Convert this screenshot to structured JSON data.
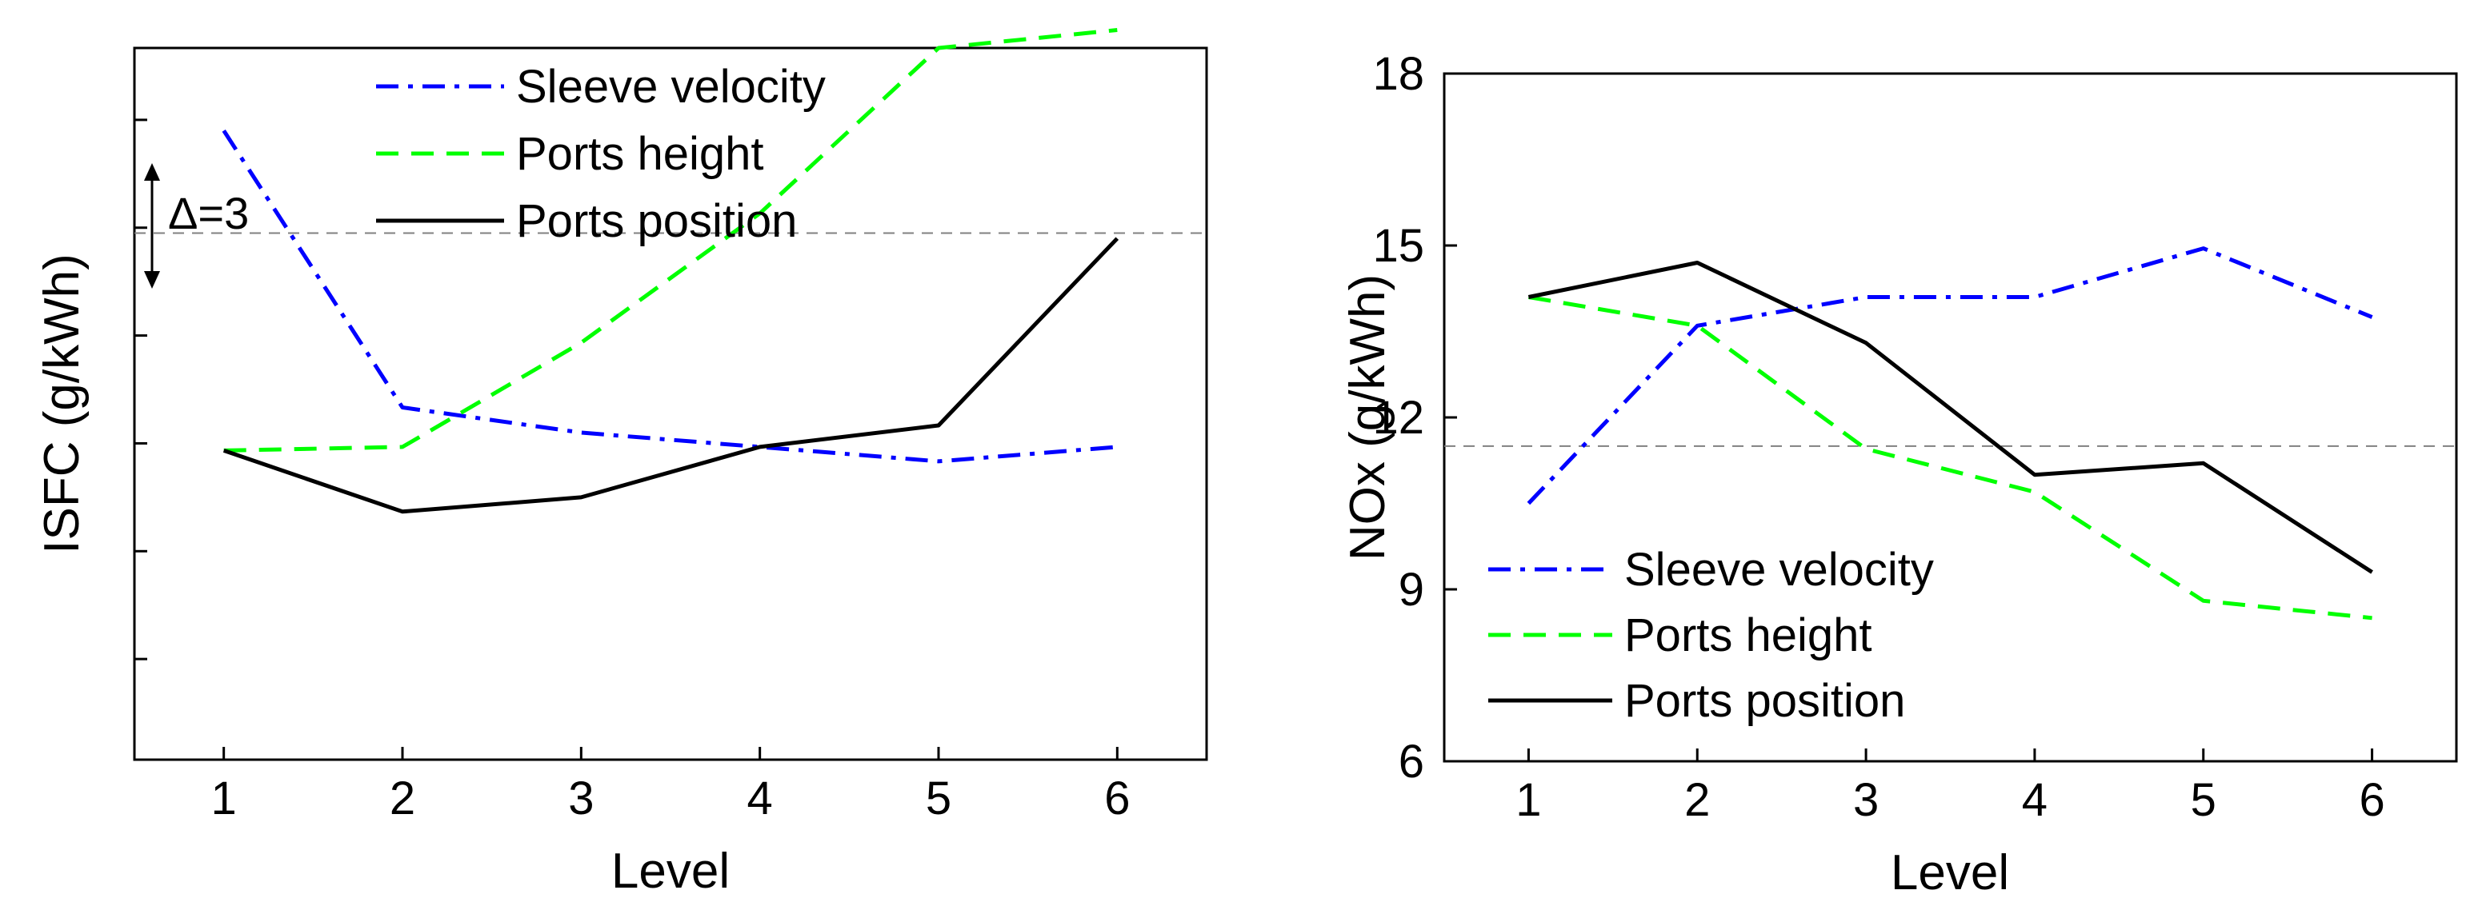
{
  "chart_data": [
    {
      "type": "line",
      "title": "",
      "xlabel": "Level",
      "ylabel": "ISFC (g/kWh)",
      "categories": [
        1,
        2,
        3,
        4,
        5,
        6
      ],
      "xlim": [
        0.5,
        6.5
      ],
      "ylim": [
        -2.8,
        17
      ],
      "yticks": [
        0,
        3,
        6,
        9,
        12,
        15
      ],
      "ytick_labels_shown": false,
      "annotation": "Δ=3",
      "reference_line": 11.85,
      "legend_position": "top",
      "series": [
        {
          "name": "Sleeve velocity",
          "color": "#0000ff",
          "style": "dashdot",
          "values": [
            14.7,
            7.0,
            6.3,
            5.9,
            5.5,
            5.9
          ]
        },
        {
          "name": "Ports height",
          "color": "#00ff00",
          "style": "dashed",
          "values": [
            5.8,
            5.9,
            8.8,
            12.4,
            17.0,
            17.5
          ]
        },
        {
          "name": "Ports position",
          "color": "#000000",
          "style": "solid",
          "values": [
            5.8,
            4.1,
            4.5,
            5.9,
            6.5,
            11.7
          ]
        }
      ]
    },
    {
      "type": "line",
      "title": "",
      "xlabel": "Level",
      "ylabel": "NOx (g/kWh)",
      "categories": [
        1,
        2,
        3,
        4,
        5,
        6
      ],
      "xlim": [
        0.5,
        6.5
      ],
      "ylim": [
        6,
        18
      ],
      "yticks": [
        6,
        9,
        12,
        15,
        18
      ],
      "ytick_labels_shown": true,
      "reference_line": 11.5,
      "legend_position": "bottom-left",
      "series": [
        {
          "name": "Sleeve velocity",
          "color": "#0000ff",
          "style": "dashdot",
          "values": [
            10.5,
            13.6,
            14.1,
            14.1,
            14.95,
            13.75
          ]
        },
        {
          "name": "Ports height",
          "color": "#00ff00",
          "style": "dashed",
          "values": [
            14.1,
            13.6,
            11.45,
            10.7,
            8.8,
            8.5
          ]
        },
        {
          "name": "Ports position",
          "color": "#000000",
          "style": "solid",
          "values": [
            14.1,
            14.7,
            13.3,
            11.0,
            11.2,
            9.3
          ]
        }
      ]
    }
  ]
}
